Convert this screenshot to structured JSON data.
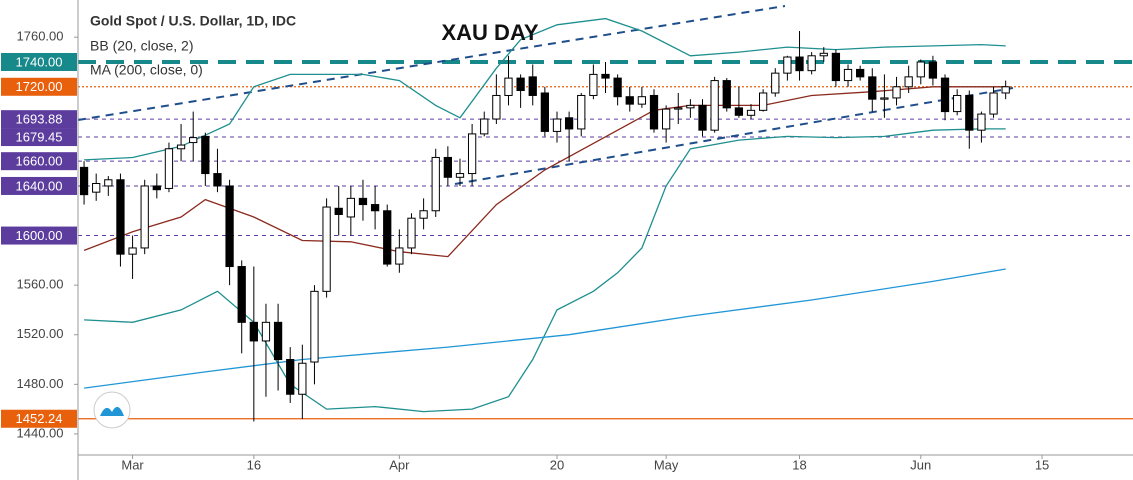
{
  "chart_data": {
    "type": "candlestick",
    "title": "Gold Spot / U.S. Dollar, 1D, IDC",
    "indicators": [
      "BB (20, close, 2)",
      "MA (200, close, 0)"
    ],
    "annotation": "XAU DAY",
    "xlim": [
      -0.5,
      86.5
    ],
    "ylim": [
      1423,
      1790
    ],
    "xticks": [
      {
        "value": 4,
        "label": "Mar"
      },
      {
        "value": 14,
        "label": "16"
      },
      {
        "value": 26,
        "label": "Apr"
      },
      {
        "value": 39,
        "label": "20"
      },
      {
        "value": 48,
        "label": "May"
      },
      {
        "value": 59,
        "label": "18"
      },
      {
        "value": 69,
        "label": "Jun"
      },
      {
        "value": 79,
        "label": "15"
      }
    ],
    "yticks": [
      {
        "value": 1440,
        "label": "1440.00"
      },
      {
        "value": 1480,
        "label": "1480.00"
      },
      {
        "value": 1520,
        "label": "1520.00"
      },
      {
        "value": 1560,
        "label": "1560.00"
      },
      {
        "value": 1760,
        "label": "1760.00"
      }
    ],
    "levels": [
      {
        "value": 1740,
        "label": "1740.00",
        "color": "#17898a",
        "style": "dashed-thick"
      },
      {
        "value": 1720,
        "label": "1720.00",
        "color": "#e8600c",
        "style": "dotted"
      },
      {
        "value": 1693.88,
        "label": "1693.88",
        "color": "#5c3d9e",
        "style": "dashed"
      },
      {
        "value": 1679.45,
        "label": "1679.45",
        "color": "#5c3d9e",
        "style": "dashed"
      },
      {
        "value": 1660,
        "label": "1660.00",
        "color": "#5c3d9e",
        "style": "dashed"
      },
      {
        "value": 1640,
        "label": "1640.00",
        "color": "#5c3d9e",
        "style": "dashed"
      },
      {
        "value": 1600,
        "label": "1600.00",
        "color": "#5c3d9e",
        "style": "dashed"
      },
      {
        "value": 1452.24,
        "label": "1452.24",
        "color": "#e8600c",
        "style": "solid"
      }
    ],
    "up_color": "#ffffff",
    "down_color": "#000000",
    "open": [
      1655,
      1635,
      1640,
      1645,
      1585,
      1590,
      1640,
      1638,
      1670,
      1675,
      1680,
      1650,
      1640,
      1575,
      1530,
      1515,
      1530,
      1500,
      1472,
      1498,
      1555,
      1622,
      1615,
      1630,
      1625,
      1620,
      1577,
      1590,
      1614,
      1620,
      1663,
      1647,
      1650,
      1682,
      1694,
      1713,
      1727,
      1728,
      1715,
      1684,
      1695,
      1686,
      1713,
      1730,
      1727,
      1712,
      1706,
      1713,
      1686,
      1702,
      1703,
      1705,
      1685,
      1725,
      1703,
      1697,
      1701,
      1715,
      1731,
      1744,
      1733,
      1745,
      1747,
      1725,
      1734,
      1728,
      1710,
      1711,
      1720,
      1728,
      1740,
      1727,
      1700,
      1713,
      1685,
      1698,
      1715
    ],
    "high": [
      1660,
      1650,
      1648,
      1650,
      1600,
      1645,
      1650,
      1675,
      1690,
      1700,
      1683,
      1670,
      1645,
      1580,
      1575,
      1545,
      1545,
      1510,
      1512,
      1560,
      1630,
      1640,
      1640,
      1645,
      1640,
      1625,
      1605,
      1618,
      1630,
      1670,
      1672,
      1662,
      1690,
      1700,
      1730,
      1745,
      1730,
      1738,
      1720,
      1700,
      1700,
      1715,
      1738,
      1740,
      1730,
      1720,
      1720,
      1718,
      1705,
      1715,
      1710,
      1710,
      1728,
      1727,
      1720,
      1706,
      1718,
      1735,
      1745,
      1765,
      1748,
      1752,
      1750,
      1738,
      1737,
      1735,
      1730,
      1728,
      1737,
      1742,
      1745,
      1730,
      1718,
      1717,
      1700,
      1720,
      1725
    ],
    "low": [
      1625,
      1628,
      1632,
      1575,
      1565,
      1585,
      1630,
      1635,
      1660,
      1660,
      1640,
      1635,
      1560,
      1505,
      1450,
      1470,
      1475,
      1465,
      1452,
      1480,
      1550,
      1600,
      1600,
      1612,
      1605,
      1575,
      1570,
      1585,
      1605,
      1615,
      1640,
      1640,
      1640,
      1680,
      1690,
      1705,
      1703,
      1705,
      1680,
      1675,
      1660,
      1680,
      1710,
      1715,
      1705,
      1700,
      1703,
      1683,
      1675,
      1690,
      1695,
      1680,
      1683,
      1700,
      1695,
      1694,
      1700,
      1712,
      1725,
      1725,
      1730,
      1740,
      1720,
      1720,
      1725,
      1700,
      1695,
      1705,
      1715,
      1722,
      1721,
      1693,
      1697,
      1670,
      1675,
      1695,
      1710
    ],
    "close": [
      1633,
      1642,
      1645,
      1585,
      1590,
      1640,
      1637,
      1670,
      1673,
      1679,
      1650,
      1640,
      1575,
      1530,
      1515,
      1530,
      1500,
      1472,
      1497,
      1555,
      1623,
      1617,
      1630,
      1625,
      1620,
      1577,
      1590,
      1614,
      1620,
      1663,
      1647,
      1650,
      1682,
      1694,
      1713,
      1727,
      1717,
      1713,
      1684,
      1694,
      1686,
      1713,
      1730,
      1727,
      1712,
      1706,
      1712,
      1686,
      1702,
      1703,
      1705,
      1685,
      1725,
      1703,
      1697,
      1701,
      1715,
      1731,
      1744,
      1733,
      1745,
      1747,
      1725,
      1734,
      1728,
      1710,
      1711,
      1720,
      1728,
      1740,
      1727,
      1700,
      1713,
      1685,
      1698,
      1715,
      1720
    ],
    "lines": [
      {
        "color": "#1f8f8f",
        "x": [
          0,
          4,
          8,
          12,
          14,
          17,
          20,
          23,
          26,
          29,
          31,
          34,
          36,
          39,
          43,
          46,
          50,
          54,
          58,
          62,
          66,
          70,
          74,
          76
        ],
        "values": [
          1661,
          1663,
          1672,
          1690,
          1720,
          1730,
          1730,
          1730,
          1725,
          1705,
          1695,
          1735,
          1758,
          1770,
          1775,
          1765,
          1745,
          1748,
          1752,
          1750,
          1752,
          1753,
          1754,
          1753
        ]
      },
      {
        "color": "#1f8f8f",
        "x": [
          0,
          4,
          8,
          11,
          14,
          17,
          20,
          24,
          28,
          32,
          35,
          37,
          39,
          42,
          44,
          46,
          48,
          50,
          54,
          58,
          62,
          66,
          70,
          74,
          76
        ],
        "values": [
          1532,
          1530,
          1540,
          1555,
          1530,
          1480,
          1460,
          1462,
          1458,
          1460,
          1470,
          1500,
          1540,
          1555,
          1570,
          1590,
          1640,
          1670,
          1677,
          1680,
          1679,
          1680,
          1685,
          1686,
          1686
        ]
      },
      {
        "color": "#8b2a1e",
        "x": [
          0,
          4,
          8,
          10,
          14,
          18,
          22,
          26,
          30,
          34,
          38,
          44,
          47,
          50,
          56,
          60,
          65,
          70,
          76
        ],
        "values": [
          1588,
          1603,
          1615,
          1629,
          1615,
          1596,
          1595,
          1587,
          1583,
          1625,
          1653,
          1685,
          1701,
          1705,
          1705,
          1713,
          1716,
          1720,
          1720
        ]
      },
      {
        "color": "#2196d6",
        "x": [
          0,
          10,
          18,
          30,
          40,
          50,
          60,
          70,
          76
        ],
        "values": [
          1477,
          1490,
          1500,
          1510,
          1520,
          1535,
          1548,
          1563,
          1573
        ]
      }
    ]
  }
}
